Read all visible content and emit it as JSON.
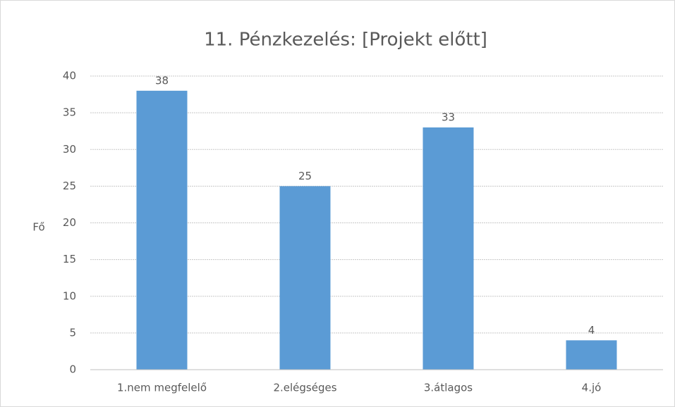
{
  "chart_data": {
    "type": "bar",
    "title": "11. Pénzkezelés: [Projekt előtt]",
    "y_label": "Fő",
    "categories": [
      "1.nem megfelelő",
      "2.elégséges",
      "3.átlagos",
      "4.jó"
    ],
    "values": [
      38,
      25,
      33,
      4
    ],
    "color": "#5b9bd5",
    "ylim": [
      0,
      40
    ],
    "yticks": [
      0,
      5,
      10,
      15,
      20,
      25,
      30,
      35,
      40
    ],
    "grid": true
  }
}
